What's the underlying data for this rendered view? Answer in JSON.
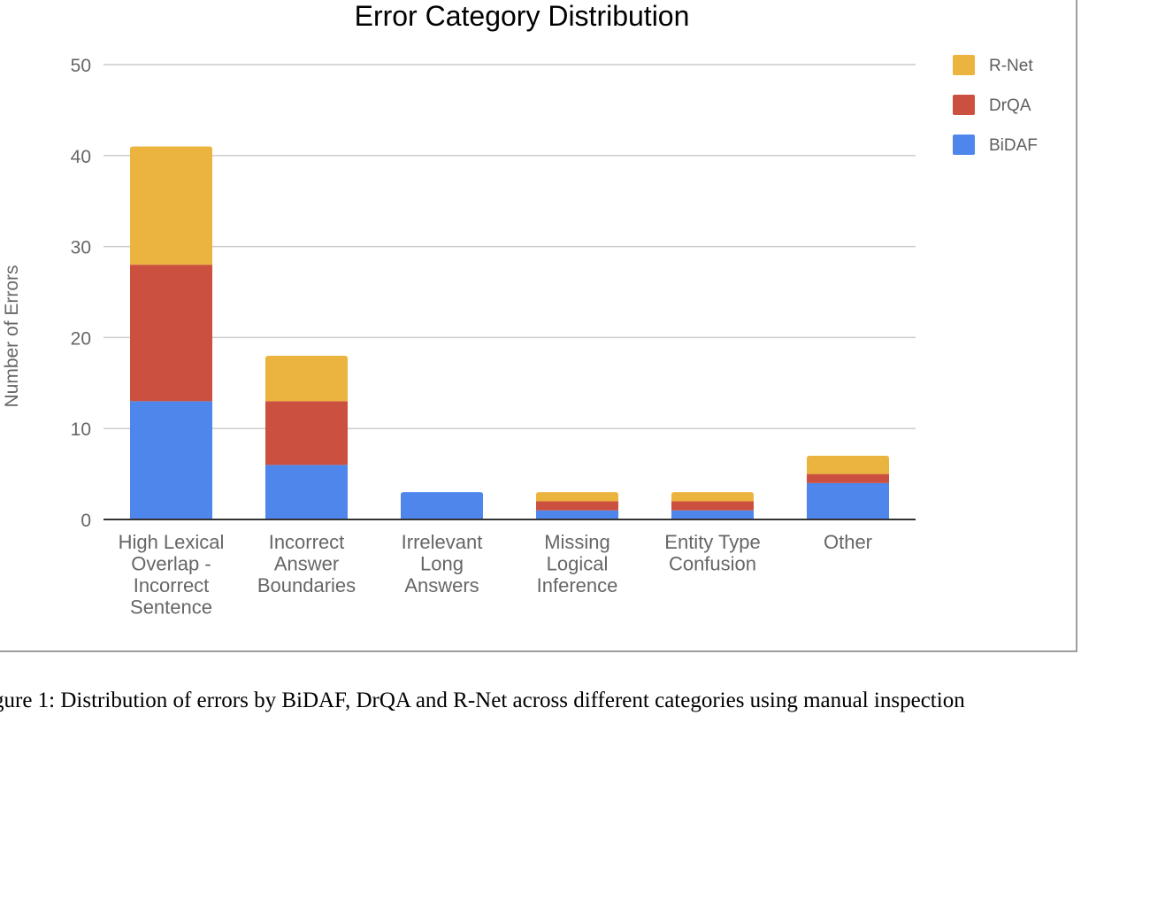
{
  "chart_data": {
    "type": "bar",
    "stacked": true,
    "title": "Error Category Distribution",
    "xlabel": "",
    "ylabel": "Number of Errors",
    "ylim": [
      0,
      50
    ],
    "yticks": [
      0,
      10,
      20,
      30,
      40,
      50
    ],
    "grid": true,
    "legend_position": "top-right",
    "categories": [
      [
        "High Lexical",
        "Overlap -",
        "Incorrect",
        "Sentence"
      ],
      [
        "Incorrect",
        "Answer",
        "Boundaries"
      ],
      [
        "Irrelevant",
        "Long",
        "Answers"
      ],
      [
        "Missing",
        "Logical",
        "Inference"
      ],
      [
        "Entity Type",
        "Confusion"
      ],
      [
        "Other"
      ]
    ],
    "series": [
      {
        "name": "BiDAF",
        "color": "#4f86ec",
        "values": [
          13,
          6,
          3,
          1,
          1,
          4
        ]
      },
      {
        "name": "DrQA",
        "color": "#cc5040",
        "values": [
          15,
          7,
          0,
          1,
          1,
          1
        ]
      },
      {
        "name": "R-Net",
        "color": "#ebb43e",
        "values": [
          13,
          5,
          0,
          1,
          1,
          2
        ]
      }
    ],
    "legend_order": [
      "R-Net",
      "DrQA",
      "BiDAF"
    ]
  },
  "caption": "gure 1: Distribution of errors by BiDAF, DrQA and R-Net across different categories using manual inspection"
}
